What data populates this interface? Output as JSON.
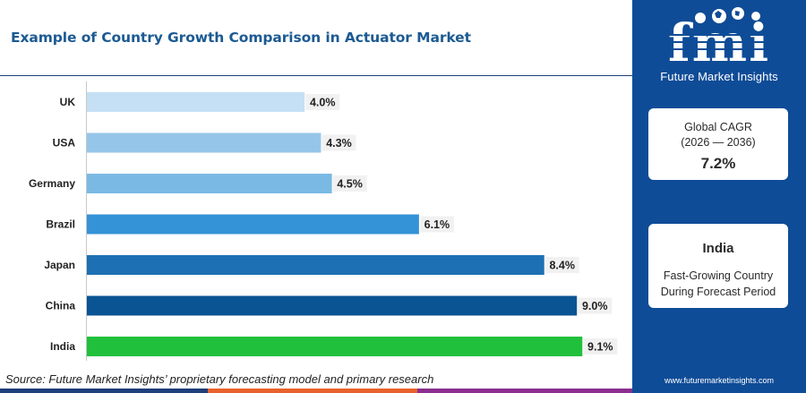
{
  "header": {
    "title": "Example of Country Growth Comparison in Actuator Market"
  },
  "chart_data": {
    "type": "bar",
    "orientation": "horizontal",
    "categories": [
      "UK",
      "USA",
      "Germany",
      "Brazil",
      "Japan",
      "China",
      "India"
    ],
    "values": [
      4.0,
      4.3,
      4.5,
      6.1,
      8.4,
      9.0,
      9.1
    ],
    "value_labels": [
      "4.0%",
      "4.3%",
      "4.5%",
      "6.1%",
      "8.4%",
      "9.0%",
      "9.1%"
    ],
    "colors": [
      "#c5e0f4",
      "#95c6e9",
      "#7ab9e3",
      "#3492d6",
      "#1d70b3",
      "#0a5493",
      "#21c03c"
    ],
    "xlim": [
      0,
      10
    ],
    "grid": false,
    "legend": "none"
  },
  "footer": {
    "source": "Source: Future Market Insights’ proprietary forecasting model and primary research"
  },
  "sidebar": {
    "brand_letters": "fmi",
    "brand_name": "Future Market Insights",
    "cagr_card": {
      "label_line1": "Global CAGR",
      "label_line2": "(2026 — 2036)",
      "value": "7.2%"
    },
    "country_card": {
      "country": "India",
      "desc_line1": "Fast-Growing Country",
      "desc_line2": "During Forecast Period"
    },
    "website": "www.futuremarketinsights.com"
  },
  "colors": {
    "title": "#1c5a92",
    "sidebar_bg": "#0f4c97",
    "stripe": [
      "#1d3f7a",
      "#e8632b",
      "#8a2f8f"
    ]
  }
}
